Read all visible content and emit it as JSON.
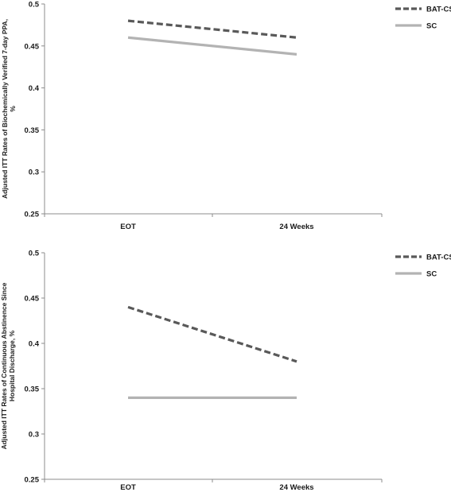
{
  "chart_data": [
    {
      "type": "line",
      "categories": [
        "EOT",
        "24 Weeks"
      ],
      "series": [
        {
          "name": "BAT-CS",
          "values": [
            0.48,
            0.46
          ]
        },
        {
          "name": "SC",
          "values": [
            0.46,
            0.44
          ]
        }
      ],
      "ylabel_lines": [
        "Adjusted  ITT Rates of Biochemically Verified 7-day PPA,",
        "%"
      ],
      "ylim": [
        0.25,
        0.5
      ],
      "yticks": [
        "0.25",
        "0.3",
        "0.35",
        "0.4",
        "0.45",
        "0.5"
      ],
      "legend_position": "top-right",
      "grid": false
    },
    {
      "type": "line",
      "categories": [
        "EOT",
        "24 Weeks"
      ],
      "series": [
        {
          "name": "BAT-CS",
          "values": [
            0.44,
            0.38
          ]
        },
        {
          "name": "SC",
          "values": [
            0.34,
            0.34
          ]
        }
      ],
      "ylabel_lines": [
        "Adjusted ITT Rates of Continuous Abstinence Since",
        "Hospital Discharge, %"
      ],
      "ylim": [
        0.25,
        0.5
      ],
      "yticks": [
        "0.25",
        "0.3",
        "0.35",
        "0.4",
        "0.45",
        "0.5"
      ],
      "legend_position": "top-right",
      "grid": false
    }
  ],
  "colors": {
    "BAT-CS": "#595959",
    "SC": "#b3b3b3",
    "axis": "#8c8c8c",
    "text": "#1a1a1a"
  },
  "line_styles": {
    "BAT-CS": "dashed",
    "SC": "solid"
  }
}
